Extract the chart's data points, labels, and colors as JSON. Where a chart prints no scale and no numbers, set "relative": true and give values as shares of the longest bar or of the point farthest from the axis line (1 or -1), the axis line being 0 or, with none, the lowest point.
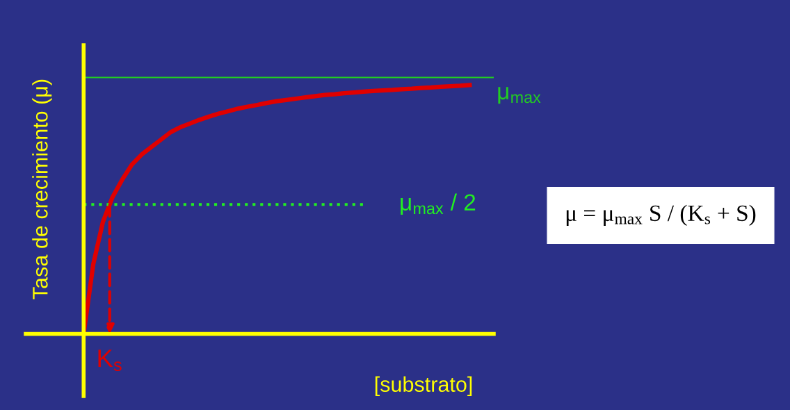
{
  "chart_data": {
    "type": "line",
    "relative": true,
    "marker": "none",
    "line_style": "solid",
    "ylabel": "Tasa de crecimiento (μ)",
    "xlabel": "[substrato]",
    "categories": [
      null,
      null,
      null,
      null,
      null,
      null,
      null,
      null,
      null,
      null,
      null,
      null,
      null,
      null,
      null,
      null,
      null,
      null,
      null,
      null,
      null,
      null,
      null,
      null,
      null,
      null,
      null,
      null,
      null,
      null,
      null,
      null,
      null,
      null,
      null,
      null,
      null,
      null,
      null,
      null,
      null
    ],
    "series": [
      {
        "color": "#e00000",
        "values": [
          0,
          0.28,
          0.45,
          0.55,
          0.62,
          0.68,
          0.72,
          0.75,
          0.78,
          0.81,
          0.83,
          0.845,
          0.86,
          0.873,
          0.885,
          0.895,
          0.905,
          0.913,
          0.92,
          0.928,
          0.935,
          0.94,
          0.945,
          0.95,
          0.955,
          0.96,
          0.963,
          0.967,
          0.97,
          0.973,
          0.976,
          0.978,
          0.98,
          0.983,
          0.985,
          0.988,
          0.99,
          0.993,
          0.995,
          0.997,
          1
        ]
      }
    ],
    "ref_lines": [
      {
        "axis": "y",
        "value": 1.03,
        "label": "μ$_{max}$",
        "color": "#22cc22",
        "line_style": "solid"
      },
      {
        "axis": "y",
        "value": 0.52,
        "label": "μ$_{max}$ / 2",
        "color": "#22ee22",
        "line_style": "dotted"
      }
    ],
    "annotations": [
      "K$_{s}$",
      "μ = μ$_{max}$ S / (K$_{s}$ + S)"
    ]
  }
}
